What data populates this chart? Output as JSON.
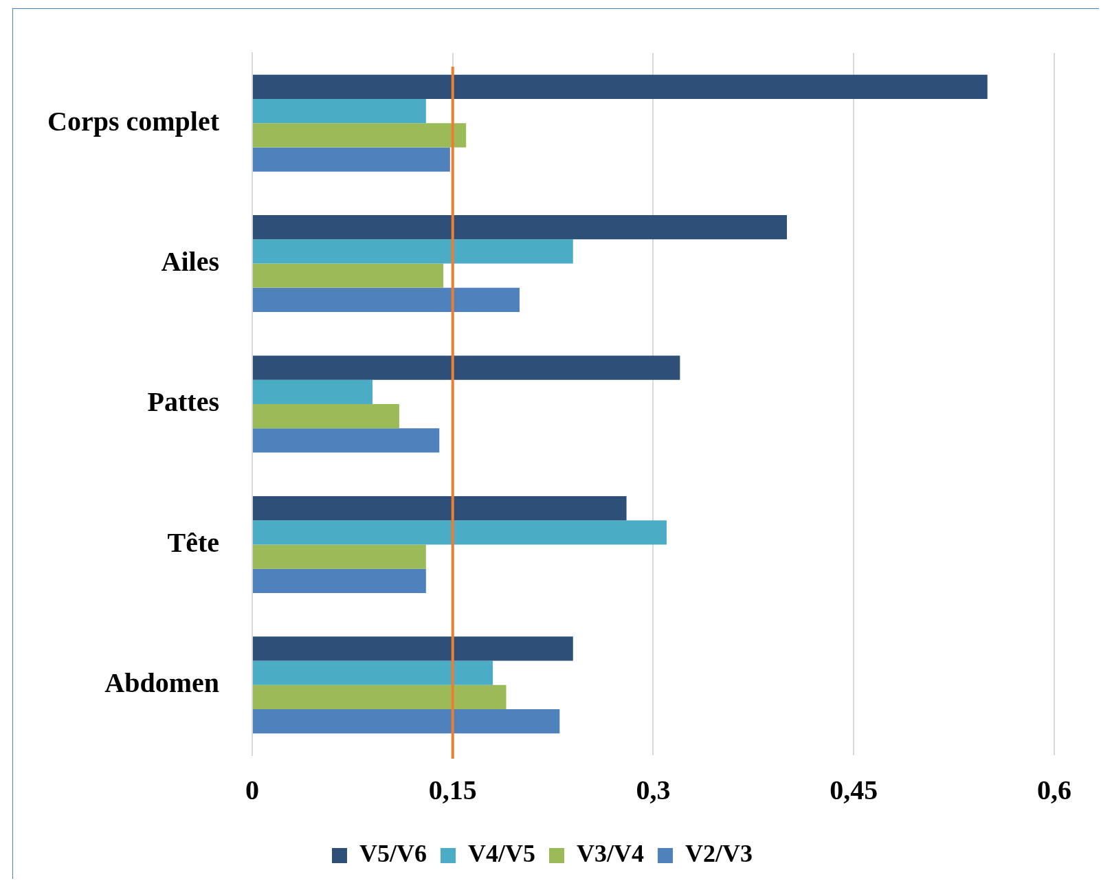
{
  "chart_data": {
    "type": "bar",
    "orientation": "horizontal",
    "categories": [
      "Corps complet",
      "Ailes",
      "Pattes",
      "Tête",
      "Abdomen"
    ],
    "series": [
      {
        "name": "V5/V6",
        "color": "#2e5078",
        "values": [
          0.55,
          0.4,
          0.32,
          0.28,
          0.24
        ]
      },
      {
        "name": "V4/V5",
        "color": "#4bacc6",
        "values": [
          0.13,
          0.24,
          0.09,
          0.31,
          0.18
        ]
      },
      {
        "name": "V3/V4",
        "color": "#9bbb59",
        "values": [
          0.16,
          0.143,
          0.11,
          0.13,
          0.19
        ]
      },
      {
        "name": "V2/V3",
        "color": "#4f81bd",
        "values": [
          0.148,
          0.2,
          0.14,
          0.13,
          0.23
        ]
      }
    ],
    "xlim": [
      0,
      0.6
    ],
    "xticks": [
      0,
      {
        "value": 0.15,
        "label": "0,15"
      },
      {
        "value": 0.3,
        "label": "0,3"
      },
      {
        "value": 0.45,
        "label": "0,45"
      },
      {
        "value": 0.6,
        "label": "0,6"
      }
    ],
    "ref_lines": [
      {
        "axis": "x",
        "value": 0.15,
        "color": "#ed7d31"
      }
    ],
    "grid": "x",
    "legend": "bottom"
  }
}
